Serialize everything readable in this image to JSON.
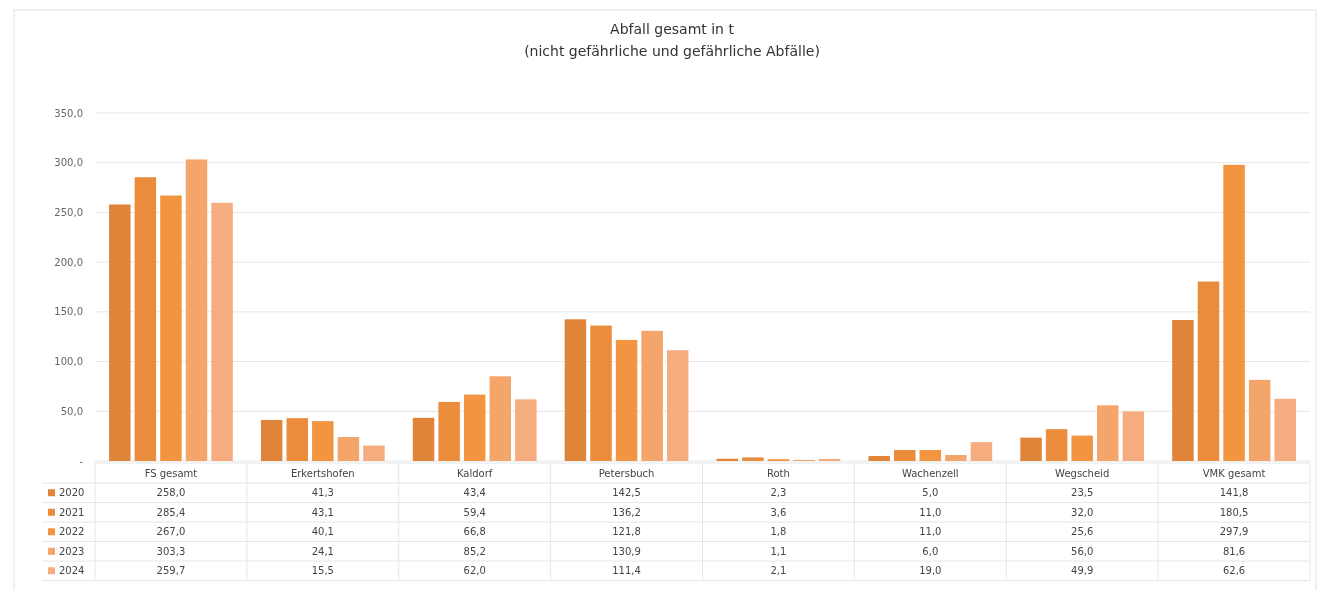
{
  "chart_data": {
    "type": "bar",
    "title": "Abfall gesamt in t",
    "subtitle": "(nicht gefährliche und gefährliche Abfälle)",
    "categories": [
      "FS gesamt",
      "Erkertshofen",
      "Kaldorf",
      "Petersbuch",
      "Roth",
      "Wachenzell",
      "Wegscheid",
      "VMK gesamt"
    ],
    "series": [
      {
        "name": "2020",
        "color": "#e0843a",
        "values": [
          258.0,
          41.3,
          43.4,
          142.5,
          2.3,
          5.0,
          23.5,
          141.8
        ],
        "value_labels": [
          "258,0",
          "41,3",
          "43,4",
          "142,5",
          "2,3",
          "5,0",
          "23,5",
          "141,8"
        ]
      },
      {
        "name": "2021",
        "color": "#ea8c3c",
        "values": [
          285.4,
          43.1,
          59.4,
          136.2,
          3.6,
          11.0,
          32.0,
          180.5
        ],
        "value_labels": [
          "285,4",
          "43,1",
          "59,4",
          "136,2",
          "3,6",
          "11,0",
          "32,0",
          "180,5"
        ]
      },
      {
        "name": "2022",
        "color": "#f39440",
        "values": [
          267.0,
          40.1,
          66.8,
          121.8,
          1.8,
          11.0,
          25.6,
          297.9
        ],
        "value_labels": [
          "267,0",
          "40,1",
          "66,8",
          "121,8",
          "1,8",
          "11,0",
          "25,6",
          "297,9"
        ]
      },
      {
        "name": "2023",
        "color": "#f3a56a",
        "values": [
          303.3,
          24.1,
          85.2,
          130.9,
          1.1,
          6.0,
          56.0,
          81.6
        ],
        "value_labels": [
          "303,3",
          "24,1",
          "85,2",
          "130,9",
          "1,1",
          "6,0",
          "56,0",
          "81,6"
        ]
      },
      {
        "name": "2024",
        "color": "#f5ad80",
        "values": [
          259.7,
          15.5,
          62.0,
          111.4,
          2.1,
          19.0,
          49.9,
          62.6
        ],
        "value_labels": [
          "259,7",
          "15,5",
          "62,0",
          "111,4",
          "2,1",
          "19,0",
          "49,9",
          "62,6"
        ]
      }
    ],
    "ylim": [
      0,
      350
    ],
    "yticks": [
      {
        "value": 0,
        "label": "-"
      },
      {
        "value": 50,
        "label": "50,0"
      },
      {
        "value": 100,
        "label": "100,0"
      },
      {
        "value": 150,
        "label": "150,0"
      },
      {
        "value": 200,
        "label": "200,0"
      },
      {
        "value": 250,
        "label": "250,0"
      },
      {
        "value": 300,
        "label": "300,0"
      },
      {
        "value": 350,
        "label": "350,0"
      }
    ],
    "grid": "y",
    "legend": "bottom"
  }
}
